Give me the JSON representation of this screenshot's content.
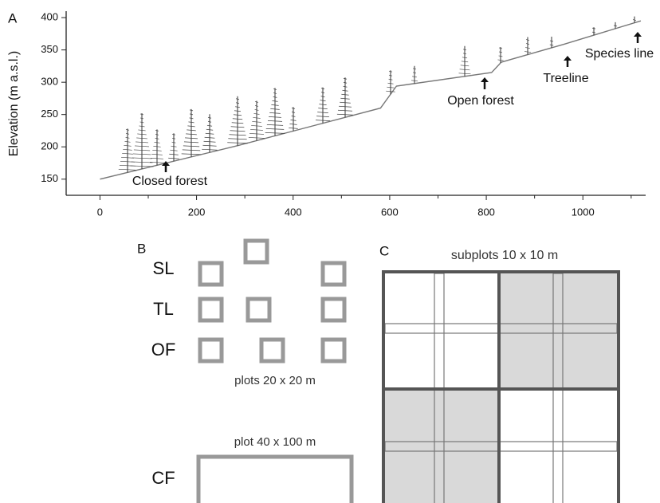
{
  "chart_data": {
    "type": "line",
    "label": "A",
    "y_label": "Elevation (m a.s.l.)",
    "x": [
      0,
      286,
      581,
      614,
      811,
      831,
      962,
      1120
    ],
    "values": [
      150,
      202,
      260,
      294,
      315,
      331,
      359,
      395
    ],
    "color": "#777777",
    "xlim": [
      -70,
      1130
    ],
    "ylim": [
      125,
      410
    ],
    "xticks": [
      0,
      200,
      400,
      600,
      800,
      1000
    ],
    "xminorticks": [
      100,
      300,
      500,
      700,
      900,
      1100
    ],
    "yticks": [
      150,
      200,
      250,
      300,
      350,
      400
    ],
    "annotations": [
      "Closed forest",
      "Open forest",
      "Treeline",
      "Species line"
    ]
  },
  "panel_b": {
    "label": "B",
    "rows": [
      "SL",
      "TL",
      "OF"
    ],
    "plots_caption": "plots 20 x 20 m",
    "big_plot_caption": "plot 40 x 100 m",
    "big_plot_row": "CF"
  },
  "panel_c": {
    "label": "C",
    "caption": "subplots 10 x 10 m"
  }
}
